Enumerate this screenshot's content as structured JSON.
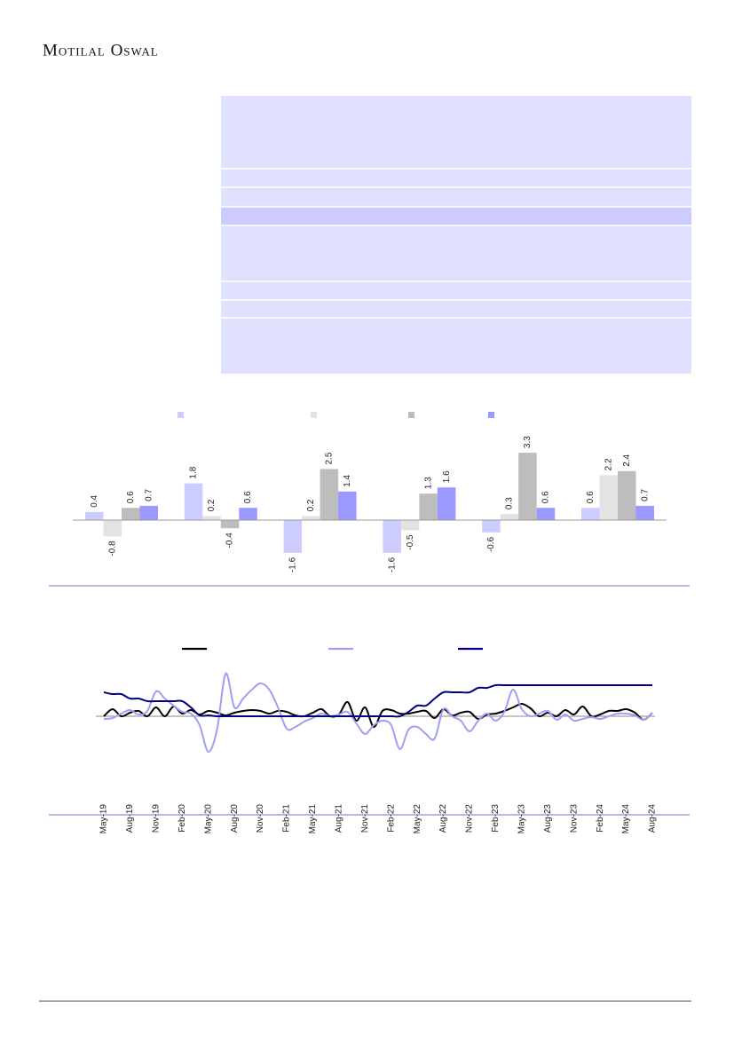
{
  "header": {
    "title": "Motilal Oswal"
  },
  "chart_data": [
    {
      "type": "bar",
      "categories": [
        null,
        null,
        null,
        null,
        null,
        null
      ],
      "series": [
        {
          "color": "#ccccff",
          "values": [
            0.4,
            1.8,
            -1.6,
            -1.6,
            -0.6,
            0.6
          ]
        },
        {
          "color": "#e3e3e3",
          "values": [
            -0.8,
            0.2,
            0.2,
            -0.5,
            0.3,
            2.2
          ]
        },
        {
          "color": "#bdbdbd",
          "values": [
            0.6,
            -0.4,
            2.5,
            1.3,
            3.3,
            2.4
          ]
        },
        {
          "color": "#9999ff",
          "values": [
            0.7,
            0.6,
            1.4,
            1.6,
            0.6,
            0.7
          ]
        }
      ],
      "ylim": [
        -2,
        3.5
      ],
      "legend": "top"
    },
    {
      "type": "line",
      "categories": [
        "May-19",
        null,
        null,
        "Aug-19",
        null,
        null,
        "Nov-19",
        null,
        null,
        "Feb-20",
        null,
        null,
        "May-20",
        null,
        null,
        "Aug-20",
        null,
        null,
        "Nov-20",
        null,
        null,
        "Feb-21",
        null,
        null,
        "May-21",
        null,
        null,
        "Aug-21",
        null,
        null,
        "Nov-21",
        null,
        null,
        "Feb-22",
        null,
        null,
        "May-22",
        null,
        null,
        "Aug-22",
        null,
        null,
        "Nov-22",
        null,
        null,
        "Feb-23",
        null,
        null,
        "May-23",
        null,
        null,
        "Aug-23",
        null,
        null,
        "Nov-23",
        null,
        null,
        "Feb-24",
        null,
        null,
        "May-24",
        null,
        null,
        "Aug-24"
      ],
      "series": [
        {
          "color": "#000000",
          "values": [
            0.0,
            0.8,
            0.0,
            0.4,
            0.6,
            0.0,
            1.0,
            0.0,
            1.1,
            0.3,
            0.7,
            0.2,
            0.6,
            0.4,
            0.1,
            0.4,
            0.6,
            0.7,
            0.6,
            0.3,
            0.6,
            0.5,
            0.1,
            0.0,
            0.4,
            0.8,
            0.0,
            0.2,
            1.6,
            -0.5,
            1.0,
            -1.2,
            0.6,
            0.7,
            0.3,
            0.3,
            0.5,
            0.6,
            -0.2,
            0.8,
            0.1,
            0.4,
            0.5,
            -0.3,
            0.2,
            0.3,
            0.6,
            1.0,
            1.4,
            0.9,
            0.0,
            0.4,
            0.0,
            0.7,
            0.2,
            1.1,
            0.0,
            0.2,
            0.6,
            0.6,
            0.8,
            0.4,
            -0.4,
            0.4
          ]
        },
        {
          "color": "#9f9ff5",
          "values": [
            -0.3,
            -0.2,
            0.3,
            0.7,
            0.2,
            0.6,
            2.8,
            2.0,
            1.2,
            0.5,
            0.3,
            -1.0,
            -4.0,
            -1.5,
            4.8,
            1.0,
            2.0,
            3.0,
            3.7,
            3.0,
            1.0,
            -1.4,
            -1.2,
            -0.6,
            -0.2,
            0.3,
            0.0,
            0.2,
            0.5,
            -0.8,
            -2.0,
            -1.0,
            -0.5,
            -1.0,
            -3.7,
            -1.5,
            -1.2,
            -2.0,
            -2.5,
            0.8,
            0.0,
            -0.5,
            -1.7,
            -0.5,
            0.3,
            -0.5,
            0.5,
            3.0,
            0.8,
            0.0,
            0.3,
            0.6,
            -0.4,
            0.2,
            -0.5,
            -0.3,
            -0.1,
            -0.3,
            0.0,
            0.3,
            0.3,
            0.1,
            -0.4,
            0.4
          ]
        },
        {
          "color": "#000080",
          "values": [
            2.7,
            2.5,
            2.5,
            2.0,
            2.0,
            1.7,
            1.7,
            1.7,
            1.7,
            1.7,
            1.0,
            0.1,
            0.1,
            0.0,
            0.0,
            0.0,
            0.0,
            0.0,
            0.0,
            0.0,
            0.0,
            0.0,
            0.0,
            0.0,
            0.0,
            0.0,
            0.0,
            0.0,
            0.0,
            0.0,
            0.0,
            0.0,
            0.0,
            0.0,
            0.0,
            0.5,
            1.2,
            1.2,
            2.0,
            2.7,
            2.7,
            2.7,
            2.7,
            3.2,
            3.2,
            3.5,
            3.5,
            3.5,
            3.5,
            3.5,
            3.5,
            3.5,
            3.5,
            3.5,
            3.5,
            3.5,
            3.5,
            3.5,
            3.5,
            3.5,
            3.5,
            3.5,
            3.5,
            3.5
          ]
        }
      ],
      "ylim": [
        -6,
        5
      ],
      "legend": "top"
    }
  ]
}
